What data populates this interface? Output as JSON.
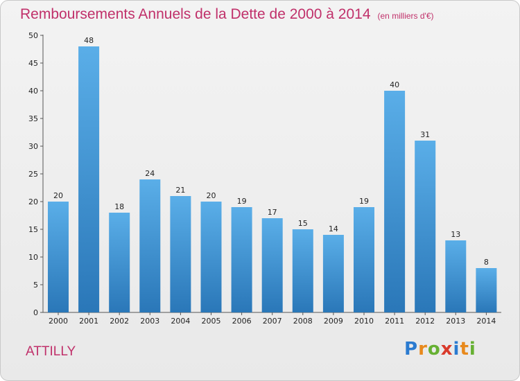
{
  "chart_data": {
    "type": "bar",
    "title": "Remboursements Annuels de la Dette de 2000 à 2014",
    "unit_note": "(en milliers d'€)",
    "categories": [
      "2000",
      "2001",
      "2002",
      "2003",
      "2004",
      "2005",
      "2006",
      "2007",
      "2008",
      "2009",
      "2010",
      "2011",
      "2012",
      "2013",
      "2014"
    ],
    "values": [
      20,
      48,
      18,
      24,
      21,
      20,
      19,
      17,
      15,
      14,
      19,
      40,
      31,
      13,
      8
    ],
    "yticks": [
      0,
      5,
      10,
      15,
      20,
      25,
      30,
      35,
      40,
      45,
      50
    ],
    "ylim": [
      0,
      50
    ],
    "grid": false,
    "bar_color_top": "#5aaee8",
    "bar_color_bottom": "#2a77b8"
  },
  "footer": {
    "commune": "ATTILLY",
    "logo_letters": [
      "P",
      "r",
      "o",
      "x",
      "i",
      "t",
      "i"
    ]
  }
}
